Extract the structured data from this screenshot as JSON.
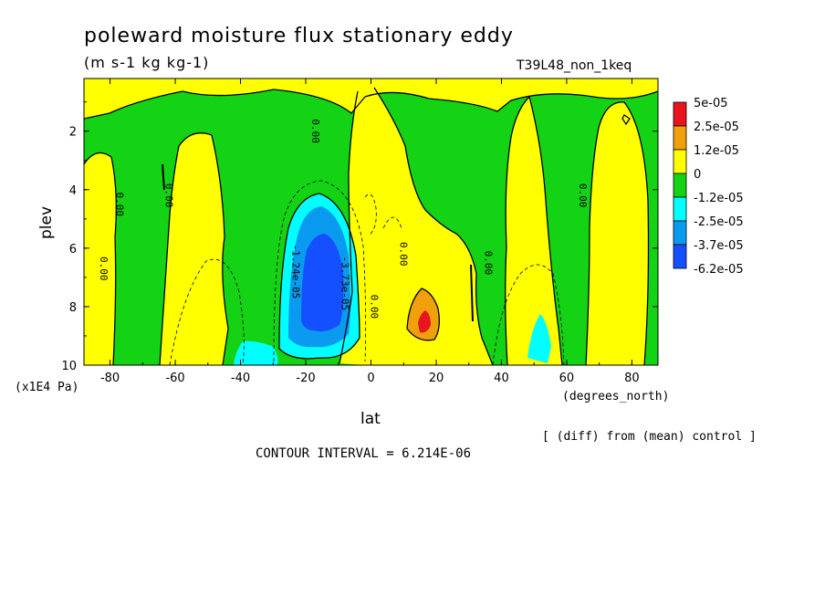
{
  "header": {
    "title": "poleward moisture flux stationary eddy",
    "units": "(m s-1 kg kg-1)",
    "run_id": "T39L48_non_1keq"
  },
  "footer": {
    "diff_note": "[ (diff) from (mean) control ]",
    "contour_interval": "CONTOUR INTERVAL = 6.214E-06"
  },
  "colors": {
    "level_pos3": "#e8141e",
    "level_pos2": "#f0a00a",
    "level_pos1": "#ffff00",
    "level_neg1": "#14d214",
    "level_neg2": "#00ffff",
    "level_neg3": "#0a9bf0",
    "level_neg4": "#1450ff"
  },
  "chart_data": {
    "type": "heatmap",
    "title": "poleward moisture flux stationary eddy",
    "xlabel": "lat",
    "xlabel_units": "(degrees_north)",
    "ylabel": "plev",
    "ylabel_units": "(x1E4 Pa)",
    "x_ticks": [
      -80,
      -60,
      -40,
      -20,
      0,
      20,
      40,
      60,
      80
    ],
    "y_ticks": [
      2,
      4,
      6,
      8,
      10
    ],
    "xlim": [
      -88,
      88
    ],
    "ylim": [
      10,
      0.2
    ],
    "y_inverted": true,
    "legend": {
      "placement": "right",
      "labels": [
        "5e-05",
        "2.5e-05",
        "1.2e-05",
        "0",
        "-1.2e-05",
        "-2.5e-05",
        "-3.7e-05",
        "-6.2e-05"
      ]
    },
    "contour_labels": [
      {
        "text": "0.00",
        "lat": -83,
        "plev": 6.7
      },
      {
        "text": "0.00",
        "lat": -78,
        "plev": 4.5
      },
      {
        "text": "0.00",
        "lat": -63,
        "plev": 4.2
      },
      {
        "text": "0.00",
        "lat": -18,
        "plev": 2.0
      },
      {
        "text": "-1.24e-05",
        "lat": -24,
        "plev": 6.8
      },
      {
        "text": "-3.73e-05",
        "lat": -9,
        "plev": 7.2
      },
      {
        "text": "0.00",
        "lat": 0,
        "plev": 8.0
      },
      {
        "text": "0.00",
        "lat": 9,
        "plev": 6.2
      },
      {
        "text": "0.00",
        "lat": 35,
        "plev": 6.5
      },
      {
        "text": "0.00",
        "lat": 64,
        "plev": 4.2
      }
    ],
    "regions": [
      {
        "level": "neg1",
        "lat_range": [
          -88,
          88
        ],
        "plev_range": [
          10,
          0.2
        ],
        "note": "background field near zero (negative side)"
      },
      {
        "level": "pos1",
        "lat_range": [
          -88,
          88
        ],
        "plev_range": [
          1.5,
          0.2
        ],
        "note": "upper levels mostly weakly positive"
      },
      {
        "level": "pos1",
        "lat_range": [
          -87,
          -73
        ],
        "plev_range": [
          10,
          3
        ],
        "note": "south polar weakly positive column"
      },
      {
        "level": "pos1",
        "lat_range": [
          -60,
          -35
        ],
        "plev_range": [
          10,
          3.5
        ],
        "note": "southern mid-latitude positive column"
      },
      {
        "level": "pos1",
        "lat_range": [
          -7,
          10
        ],
        "plev_range": [
          9.4,
          1
        ],
        "note": "equatorial positive band"
      },
      {
        "level": "pos1",
        "lat_range": [
          5,
          35
        ],
        "plev_range": [
          10,
          4
        ],
        "note": "northern subtropical positive region"
      },
      {
        "level": "pos1",
        "lat_range": [
          40,
          63
        ],
        "plev_range": [
          10,
          1
        ],
        "note": "northern mid-latitude positive column"
      },
      {
        "level": "pos1",
        "lat_range": [
          71,
          84
        ],
        "plev_range": [
          10,
          2
        ],
        "note": "north polar positive column"
      },
      {
        "level": "pos2",
        "lat_range": [
          11,
          21
        ],
        "plev_range": [
          9.2,
          7.2
        ],
        "note": "positive maximum"
      },
      {
        "level": "pos3",
        "lat_range": [
          14,
          18
        ],
        "plev_range": [
          8.9,
          8.1
        ],
        "note": "strongest positive"
      },
      {
        "level": "neg2",
        "lat_range": [
          -27,
          -8
        ],
        "plev_range": [
          9.6,
          4.2
        ],
        "note": "southern subtropical negative"
      },
      {
        "level": "neg3",
        "lat_range": [
          -24,
          -9
        ],
        "plev_range": [
          9.3,
          4.6
        ],
        "note": "stronger negative"
      },
      {
        "level": "neg4",
        "lat_range": [
          -21,
          -10
        ],
        "plev_range": [
          8.8,
          5.5
        ],
        "note": "strongest negative core"
      },
      {
        "level": "neg2",
        "lat_range": [
          -40,
          -26
        ],
        "plev_range": [
          10,
          9.3
        ],
        "note": "near-surface negative"
      },
      {
        "level": "neg2",
        "lat_range": [
          49,
          56
        ],
        "plev_range": [
          10,
          8.8
        ],
        "note": "northern near-surface negative"
      }
    ]
  }
}
